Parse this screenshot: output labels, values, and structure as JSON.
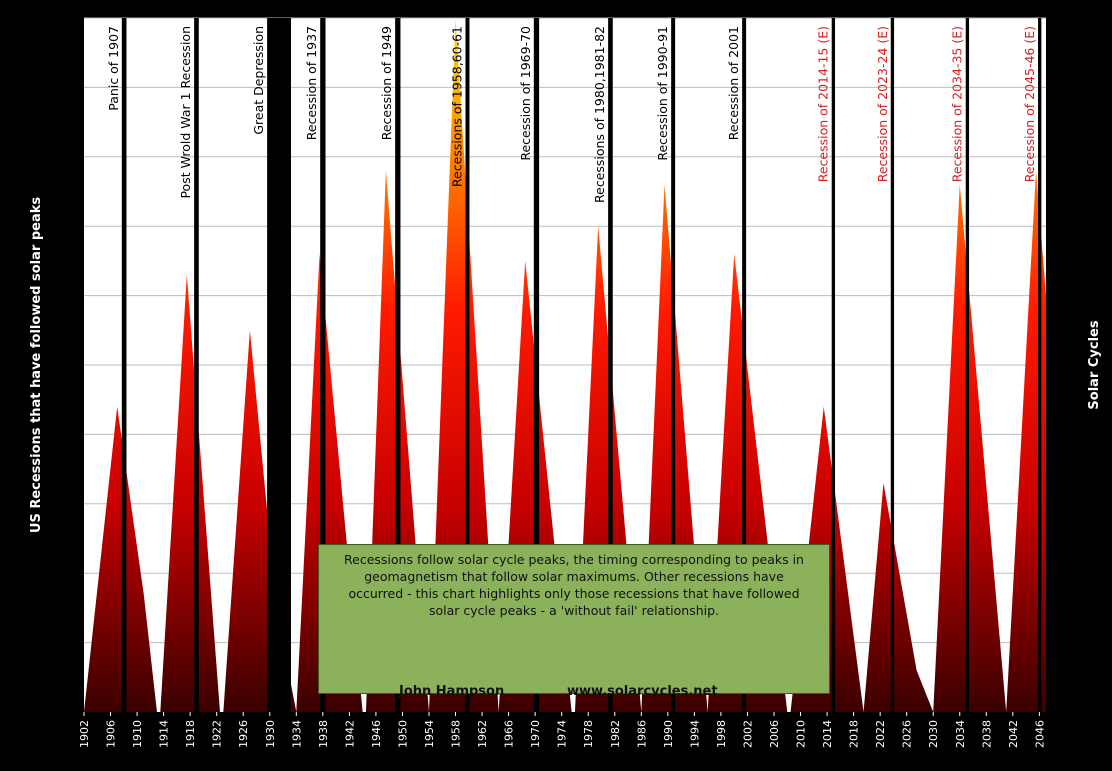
{
  "chart_data": {
    "type": "area",
    "ylabel": "US Recessions that have followed solar peaks",
    "y2label": "Solar Cycles",
    "xlim": [
      1902,
      2047
    ],
    "ylim": [
      0,
      10
    ],
    "grid": true,
    "colors": {
      "background": "#000000",
      "plot_bg": "#ffffff",
      "grid": "#bdbdbd",
      "gradient_top": "#ffe000",
      "gradient_mid": "#ff1a00",
      "gradient_bottom": "#3a0000",
      "recession_bar": "#000000",
      "label": "#000000",
      "label_estimated": "#d42020"
    },
    "x_ticks": [
      1902,
      1906,
      1910,
      1914,
      1918,
      1922,
      1926,
      1930,
      1934,
      1938,
      1942,
      1946,
      1950,
      1954,
      1958,
      1962,
      1966,
      1970,
      1974,
      1978,
      1982,
      1986,
      1990,
      1994,
      1998,
      2002,
      2006,
      2010,
      2014,
      2018,
      2022,
      2026,
      2030,
      2034,
      2038,
      2042,
      2046
    ],
    "solar_cycles": [
      [
        1902,
        0
      ],
      [
        1907,
        4.4
      ],
      [
        1911,
        1.7
      ],
      [
        1913,
        0
      ],
      [
        1913.5,
        0
      ],
      [
        1917.5,
        6.3
      ],
      [
        1922.5,
        0
      ],
      [
        1923,
        0
      ],
      [
        1927,
        5.5
      ],
      [
        1931,
        1.5
      ],
      [
        1934,
        0
      ],
      [
        1934,
        0
      ],
      [
        1937.5,
        6.6
      ],
      [
        1944,
        0
      ],
      [
        1944.5,
        0
      ],
      [
        1947.5,
        7.8
      ],
      [
        1954,
        0
      ],
      [
        1954,
        0
      ],
      [
        1958,
        10
      ],
      [
        1964.5,
        0
      ],
      [
        1964.5,
        0
      ],
      [
        1968.5,
        6.5
      ],
      [
        1975.5,
        0
      ],
      [
        1976,
        0
      ],
      [
        1979.5,
        7
      ],
      [
        1986,
        0
      ],
      [
        1986,
        0
      ],
      [
        1989.5,
        7.6
      ],
      [
        1996,
        0
      ],
      [
        1996,
        0
      ],
      [
        2000,
        6.6
      ],
      [
        2008,
        0
      ],
      [
        2008.5,
        0
      ],
      [
        2013.5,
        4.4
      ],
      [
        2019.5,
        0
      ],
      [
        2019.5,
        0
      ],
      [
        2022.5,
        3.3
      ],
      [
        2027.5,
        0.6
      ],
      [
        2030,
        0
      ],
      [
        2030,
        0
      ],
      [
        2034,
        7.6
      ],
      [
        2041,
        0
      ],
      [
        2041,
        0
      ],
      [
        2045.5,
        7.8
      ],
      [
        2047,
        6
      ]
    ],
    "recessions": [
      {
        "label": "Panic of 1907",
        "start": 1907.7,
        "end": 1908.4,
        "estimated": false
      },
      {
        "label": "Post Wrold War 1 Recession",
        "start": 1918.6,
        "end": 1919.3,
        "estimated": false
      },
      {
        "label": "Great Depression",
        "start": 1929.6,
        "end": 1933.2,
        "estimated": false
      },
      {
        "label": "Recession of 1937",
        "start": 1937.6,
        "end": 1938.4,
        "estimated": false
      },
      {
        "label": "Recession of 1949",
        "start": 1948.9,
        "end": 1949.7,
        "estimated": false
      },
      {
        "label": "Recessions of 1958,60-61",
        "start": 1959.5,
        "end": 1960.1,
        "estimated": false
      },
      {
        "label": "Recession of 1969-70",
        "start": 1969.8,
        "end": 1970.6,
        "estimated": false
      },
      {
        "label": "Recessions of 1980,1981-82",
        "start": 1981.0,
        "end": 1981.7,
        "estimated": false
      },
      {
        "label": "Recession of 1990-91",
        "start": 1990.5,
        "end": 1991.1,
        "estimated": false
      },
      {
        "label": "Recession of 2001",
        "start": 2001.2,
        "end": 2001.8,
        "estimated": false
      },
      {
        "label": "Recession of 2014-15 (E)",
        "start": 2014.7,
        "end": 2015.2,
        "estimated": true
      },
      {
        "label": "Recession of 2023-24 (E)",
        "start": 2023.6,
        "end": 2024.1,
        "estimated": true
      },
      {
        "label": "Recession of 2034-35 (E)",
        "start": 2034.9,
        "end": 2035.4,
        "estimated": true
      },
      {
        "label": "Recession of 2045-46 (E)",
        "start": 2045.8,
        "end": 2046.3,
        "estimated": true
      }
    ]
  },
  "note": {
    "text": "Recessions follow solar cycle peaks, the timing corresponding to peaks in geomagnetism that follow solar maximums. Other recessions have occurred - this chart highlights only those recessions that have followed solar cycle peaks - a 'without fail' relationship.",
    "author": "John Hampson",
    "website": "www.solarcycles.net"
  }
}
